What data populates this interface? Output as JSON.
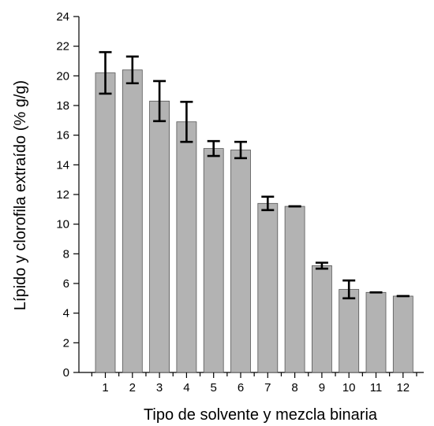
{
  "chart_data": {
    "type": "bar",
    "xlabel": "Tipo de solvente y mezcla binaria",
    "ylabel": "Lípido y clorofila extraído (% g/g)",
    "ylim": [
      0,
      24
    ],
    "yticks": [
      "0",
      "2",
      "4",
      "6",
      "8",
      "10",
      "12",
      "14",
      "16",
      "18",
      "20",
      "22",
      "24"
    ],
    "categories": [
      "1",
      "2",
      "3",
      "4",
      "5",
      "6",
      "7",
      "8",
      "9",
      "10",
      "11",
      "12"
    ],
    "values": [
      20.2,
      20.4,
      18.3,
      16.9,
      15.1,
      15.0,
      11.4,
      11.2,
      7.2,
      5.6,
      5.4,
      5.15
    ],
    "errors": [
      1.4,
      0.9,
      1.35,
      1.35,
      0.5,
      0.55,
      0.45,
      0.0,
      0.2,
      0.6,
      0.0,
      0.0
    ],
    "grid": false,
    "colors": {
      "bar": "#b3b3b3",
      "bar_edge": "#555555",
      "error_bar": "#000000"
    }
  }
}
